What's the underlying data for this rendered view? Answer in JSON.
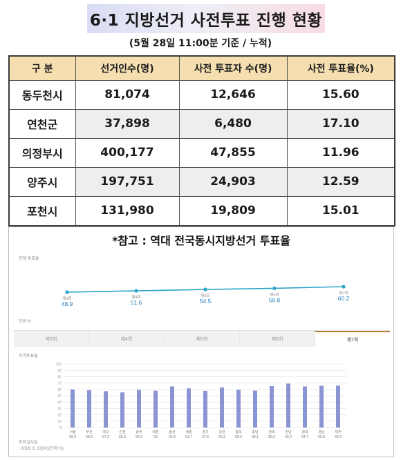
{
  "header": {
    "title": "6·1 지방선거 사전투표 진행 현황",
    "subtitle": "(5월 28일 11:00분 기준 / 누적)"
  },
  "table": {
    "headers": [
      "구 분",
      "선거인수(명)",
      "사전 투표자 수(명)",
      "사전 투표율(%)"
    ],
    "rows": [
      {
        "city": "동두천시",
        "electors": "81,074",
        "voters": "12,646",
        "rate": "15.60"
      },
      {
        "city": "연천군",
        "electors": "37,898",
        "voters": "6,480",
        "rate": "17.10"
      },
      {
        "city": "의정부시",
        "electors": "400,177",
        "voters": "47,855",
        "rate": "11.96"
      },
      {
        "city": "양주시",
        "electors": "197,751",
        "voters": "24,903",
        "rate": "12.59"
      },
      {
        "city": "포천시",
        "electors": "131,980",
        "voters": "19,809",
        "rate": "15.01"
      }
    ]
  },
  "reference": {
    "title": "*참고 : 역대 전국동시지방선거 투표율",
    "line_panel_label": "전체 투표율",
    "unit_label": "단위:%",
    "tabs": [
      "제3회",
      "제4회",
      "제5회",
      "제6회",
      "제7회"
    ],
    "active_tab": "제7회",
    "bar_panel_label": "지역투표율",
    "footnote_line1": "투표실시일",
    "footnote_line2": ": 2018. 6. 13(수)(단위:%)"
  },
  "chart_data": [
    {
      "type": "line",
      "title": "전체 투표율",
      "x": [
        "제3회",
        "제4회",
        "제5회",
        "제6회",
        "제7회"
      ],
      "series": [
        {
          "values": [
            48.9,
            51.6,
            54.5,
            56.8,
            60.2
          ]
        }
      ],
      "colors": {
        "line": "#2aa4c9",
        "label": "#2b7fb8"
      }
    },
    {
      "type": "bar",
      "title": "지역투표율",
      "categories": [
        "서울",
        "부산",
        "대구",
        "인천",
        "광주",
        "대전",
        "울산",
        "세종",
        "경기",
        "강원",
        "충북",
        "충남",
        "전북",
        "전남",
        "경북",
        "경남",
        "제주"
      ],
      "values": [
        59.9,
        58.8,
        57.3,
        55.3,
        59.2,
        58.0,
        64.8,
        61.7,
        57.8,
        63.2,
        59.3,
        58.1,
        65.2,
        69.2,
        64.7,
        65.8,
        65.9
      ],
      "ylim": [
        0,
        100
      ],
      "yticks": [
        0,
        10,
        20,
        30,
        40,
        50,
        60,
        70,
        80,
        90,
        100
      ],
      "colors": {
        "bar": "#8c95d3",
        "grid": "#dadada"
      }
    }
  ]
}
